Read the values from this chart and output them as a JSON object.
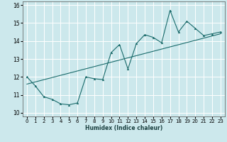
{
  "title": "",
  "xlabel": "Humidex (Indice chaleur)",
  "bg_color": "#cce8ec",
  "grid_color": "#ffffff",
  "line_color": "#1a6b6b",
  "xlim": [
    -0.5,
    23.5
  ],
  "ylim": [
    9.8,
    16.2
  ],
  "xticks": [
    0,
    1,
    2,
    3,
    4,
    5,
    6,
    7,
    8,
    9,
    10,
    11,
    12,
    13,
    14,
    15,
    16,
    17,
    18,
    19,
    20,
    21,
    22,
    23
  ],
  "yticks": [
    10,
    11,
    12,
    13,
    14,
    15,
    16
  ],
  "series1_x": [
    0,
    1,
    2,
    3,
    4,
    5,
    6,
    7,
    8,
    9,
    10,
    11,
    12,
    13,
    14,
    15,
    16,
    17,
    18,
    19,
    20,
    21,
    22,
    23
  ],
  "series1_y": [
    12.0,
    11.5,
    10.9,
    10.75,
    10.5,
    10.45,
    10.55,
    12.0,
    11.9,
    11.85,
    13.35,
    13.8,
    12.45,
    13.85,
    14.35,
    14.2,
    13.9,
    15.7,
    14.5,
    15.1,
    14.7,
    14.3,
    14.4,
    14.5
  ],
  "series2_x": [
    0,
    23
  ],
  "series2_y": [
    11.6,
    14.4
  ],
  "xlabel_fontsize": 5.5,
  "tick_fontsize": 5.0,
  "ytick_fontsize": 5.5,
  "linewidth": 0.8,
  "markersize": 2.0
}
